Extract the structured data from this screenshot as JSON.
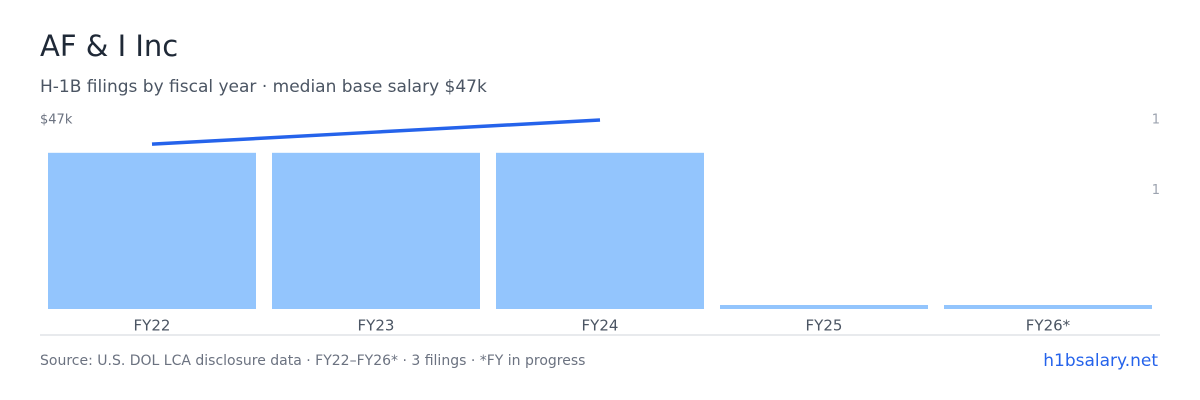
{
  "chart_data": {
    "type": "bar",
    "title": "AF & I Inc",
    "subtitle": "H-1B filings by fiscal year · median base salary $47k",
    "categories": [
      "FY22",
      "FY23",
      "FY24",
      "FY25",
      "FY26*"
    ],
    "series": [
      {
        "type": "bar",
        "axis": "y2",
        "color": "#93c5fd",
        "values": [
          1,
          1,
          1,
          0,
          0
        ]
      },
      {
        "type": "line",
        "color": "#2563eb",
        "values": [
          41000,
          44000,
          47000,
          null,
          null
        ]
      }
    ],
    "ylim": [
      0,
      47000
    ],
    "yticks": [
      {
        "value": 47000,
        "label": "$47k"
      }
    ],
    "y2lim": [
      0,
      1.21
    ],
    "y2ticks": [
      {
        "value": 1.21,
        "label": "1"
      },
      {
        "value": 0.76,
        "label": "1"
      }
    ],
    "source": "Source: U.S. DOL LCA disclosure data · FY22–FY26* · 3 filings · *FY in progress",
    "link": "h1bsalary.net"
  }
}
